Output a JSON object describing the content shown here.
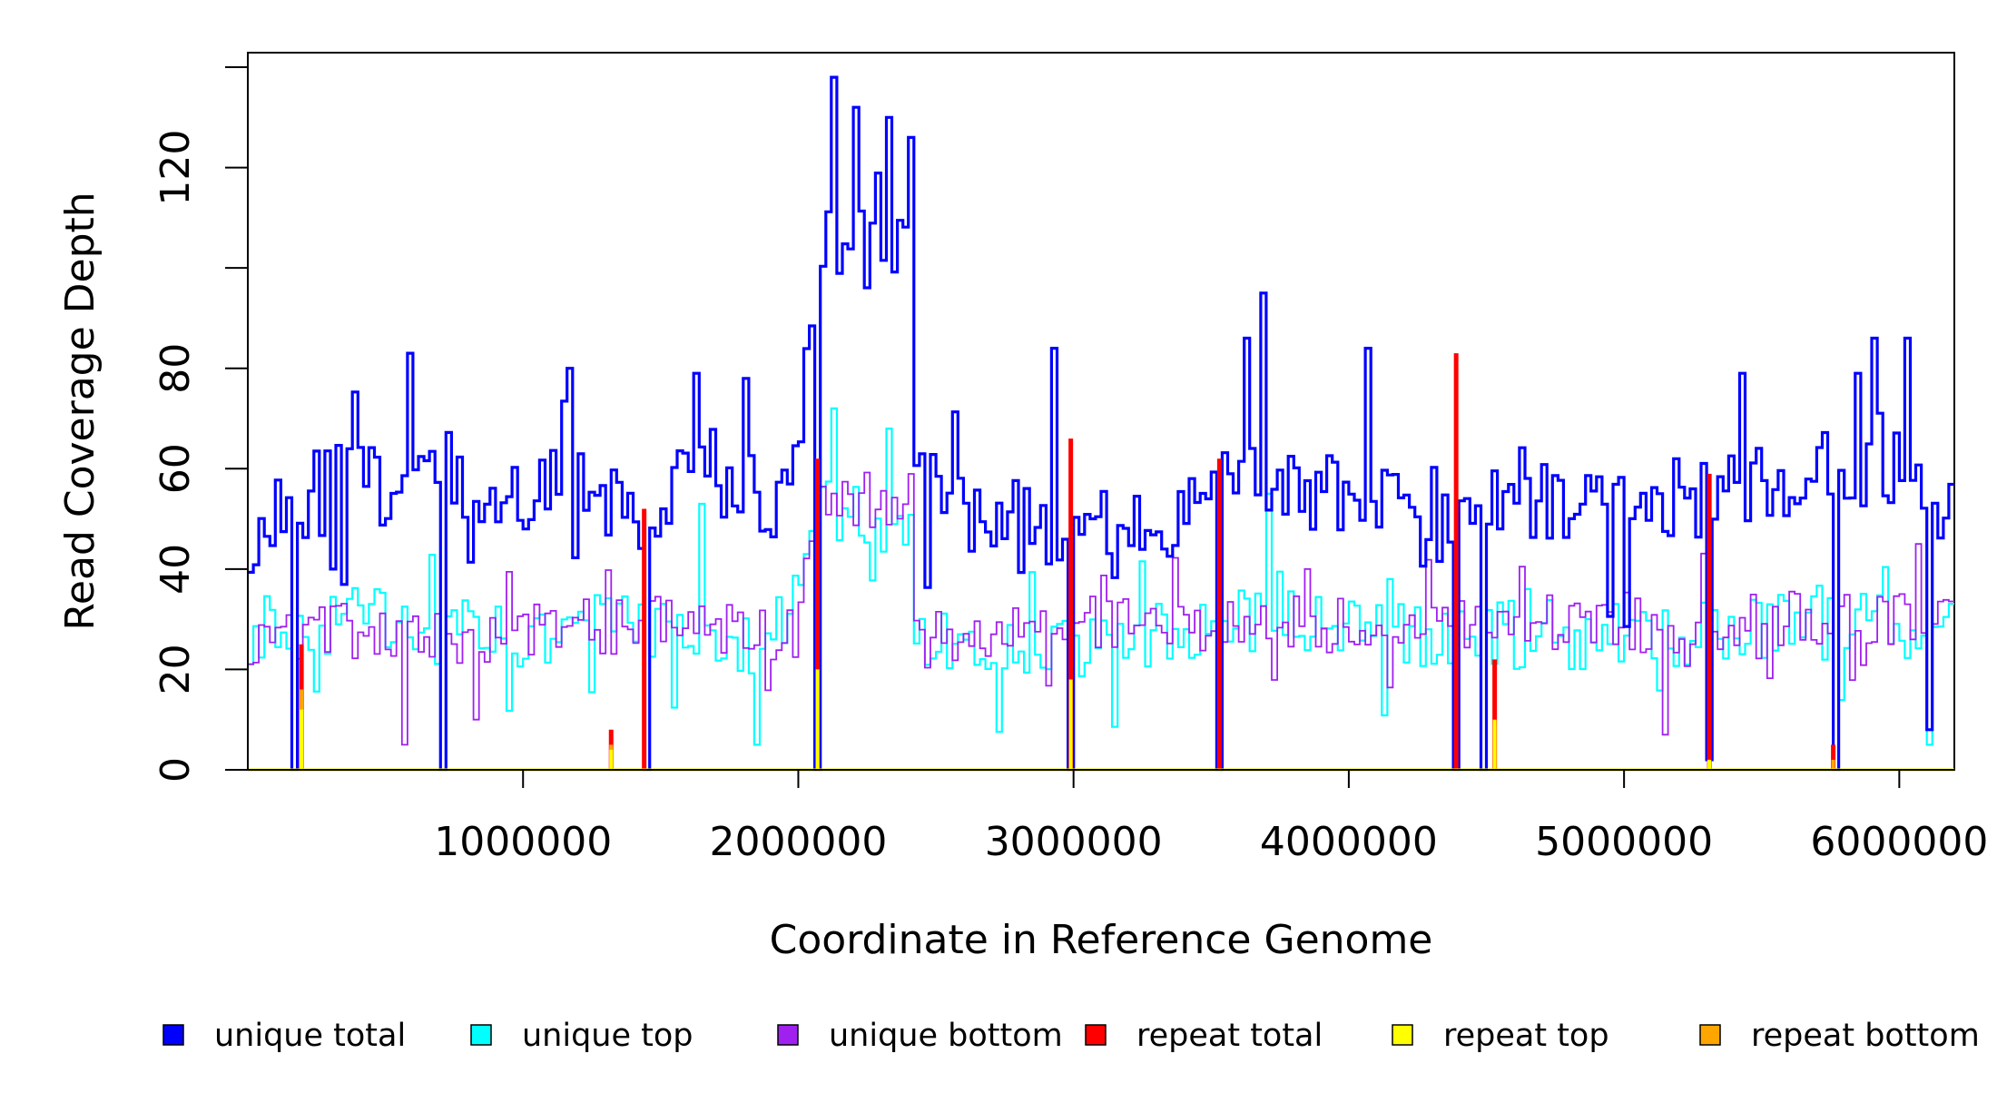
{
  "chart_data": {
    "type": "line",
    "style": "step",
    "title": "",
    "xlabel": "Coordinate in Reference Genome",
    "ylabel": "Read Coverage Depth",
    "xlim": [
      0,
      6200000
    ],
    "ylim": [
      0,
      140
    ],
    "x_ticks": [
      1000000,
      2000000,
      3000000,
      4000000,
      5000000,
      6000000
    ],
    "x_tick_labels": [
      "1000000",
      "2000000",
      "3000000",
      "4000000",
      "5000000",
      "6000000"
    ],
    "y_ticks": [
      0,
      20,
      40,
      60,
      80,
      100,
      120,
      140
    ],
    "y_tick_labels": [
      "0",
      "20",
      "40",
      "60",
      "80",
      "",
      "120",
      ""
    ],
    "legend_position": "bottom",
    "bin_width": 20000,
    "series": [
      {
        "name": "unique total",
        "color": "#0000ff",
        "profile": [
          [
            0,
            48
          ],
          [
            200000,
            55
          ],
          [
            400000,
            56
          ],
          [
            600000,
            58
          ],
          [
            700000,
            64
          ],
          [
            800000,
            52
          ],
          [
            1000000,
            55
          ],
          [
            1200000,
            57
          ],
          [
            1400000,
            52
          ],
          [
            1600000,
            56
          ],
          [
            1800000,
            54
          ],
          [
            2000000,
            56
          ],
          [
            2080000,
            108
          ],
          [
            2200000,
            104
          ],
          [
            2400000,
            103
          ],
          [
            2420000,
            56
          ],
          [
            2600000,
            51
          ],
          [
            2800000,
            53
          ],
          [
            3000000,
            47
          ],
          [
            3200000,
            47
          ],
          [
            3400000,
            51
          ],
          [
            3600000,
            58
          ],
          [
            3800000,
            57
          ],
          [
            4000000,
            55
          ],
          [
            4200000,
            54
          ],
          [
            4400000,
            50
          ],
          [
            4600000,
            55
          ],
          [
            4800000,
            54
          ],
          [
            5000000,
            51
          ],
          [
            5200000,
            51
          ],
          [
            5400000,
            55
          ],
          [
            5600000,
            57
          ],
          [
            5800000,
            60
          ],
          [
            6000000,
            62
          ],
          [
            6200000,
            52
          ]
        ],
        "noise": 9,
        "spikes": [
          [
            580000,
            83
          ],
          [
            1170000,
            80
          ],
          [
            1620000,
            79
          ],
          [
            1800000,
            78
          ],
          [
            2130000,
            138
          ],
          [
            2210000,
            132
          ],
          [
            2330000,
            130
          ],
          [
            2400000,
            126
          ],
          [
            2920000,
            84
          ],
          [
            3690000,
            95
          ],
          [
            3620000,
            86
          ],
          [
            4060000,
            84
          ],
          [
            5420000,
            79
          ],
          [
            5850000,
            79
          ],
          [
            5900000,
            86
          ],
          [
            6030000,
            86
          ]
        ],
        "drops": [
          [
            160000,
            0
          ],
          [
            310000,
            40
          ],
          [
            700000,
            0
          ],
          [
            1440000,
            0
          ],
          [
            2070000,
            0
          ],
          [
            2990000,
            0
          ],
          [
            3530000,
            0
          ],
          [
            4390000,
            0
          ],
          [
            4490000,
            0
          ],
          [
            5310000,
            2
          ],
          [
            5760000,
            0
          ],
          [
            6110000,
            8
          ]
        ]
      },
      {
        "name": "unique top",
        "color": "#00ffff",
        "profile": [
          [
            0,
            28
          ],
          [
            400000,
            30
          ],
          [
            800000,
            27
          ],
          [
            1200000,
            28
          ],
          [
            1600000,
            29
          ],
          [
            1900000,
            24
          ],
          [
            2080000,
            52
          ],
          [
            2200000,
            50
          ],
          [
            2420000,
            50
          ],
          [
            2440000,
            26
          ],
          [
            2800000,
            24
          ],
          [
            3200000,
            26
          ],
          [
            3600000,
            30
          ],
          [
            4000000,
            28
          ],
          [
            4400000,
            27
          ],
          [
            4800000,
            27
          ],
          [
            5200000,
            26
          ],
          [
            5600000,
            30
          ],
          [
            6000000,
            32
          ],
          [
            6200000,
            28
          ]
        ],
        "noise": 7,
        "spikes": [
          [
            1850000,
            5
          ],
          [
            2130000,
            72
          ],
          [
            2330000,
            68
          ],
          [
            3700000,
            55
          ],
          [
            1640000,
            53
          ]
        ],
        "drops": [
          [
            160000,
            0
          ],
          [
            700000,
            0
          ],
          [
            1440000,
            0
          ],
          [
            2070000,
            0
          ],
          [
            2990000,
            0
          ],
          [
            3530000,
            0
          ],
          [
            4390000,
            0
          ],
          [
            4490000,
            0
          ],
          [
            5310000,
            2
          ],
          [
            5760000,
            0
          ],
          [
            6110000,
            5
          ]
        ]
      },
      {
        "name": "unique bottom",
        "color": "#a020f0",
        "profile": [
          [
            0,
            27
          ],
          [
            400000,
            28
          ],
          [
            800000,
            26
          ],
          [
            1200000,
            28
          ],
          [
            1600000,
            29
          ],
          [
            2000000,
            27
          ],
          [
            2080000,
            56
          ],
          [
            2200000,
            54
          ],
          [
            2420000,
            53
          ],
          [
            2440000,
            26
          ],
          [
            2800000,
            28
          ],
          [
            3200000,
            29
          ],
          [
            3600000,
            30
          ],
          [
            4000000,
            28
          ],
          [
            4400000,
            28
          ],
          [
            4800000,
            30
          ],
          [
            5200000,
            29
          ],
          [
            5600000,
            30
          ],
          [
            6000000,
            31
          ],
          [
            6200000,
            28
          ]
        ],
        "noise": 6,
        "spikes": [
          [
            560000,
            5
          ],
          [
            830000,
            10
          ],
          [
            5150000,
            7
          ],
          [
            6060000,
            45
          ]
        ],
        "drops": [
          [
            160000,
            0
          ],
          [
            700000,
            0
          ],
          [
            1440000,
            0
          ],
          [
            2070000,
            0
          ],
          [
            2990000,
            0
          ],
          [
            3530000,
            0
          ],
          [
            4390000,
            0
          ],
          [
            4490000,
            0
          ],
          [
            5310000,
            2
          ],
          [
            5760000,
            0
          ],
          [
            6110000,
            8
          ]
        ]
      },
      {
        "name": "repeat total",
        "color": "#ff0000",
        "spikes": [
          [
            195000,
            25
          ],
          [
            1320000,
            8
          ],
          [
            1440000,
            52
          ],
          [
            2070000,
            62
          ],
          [
            2990000,
            66
          ],
          [
            3530000,
            62
          ],
          [
            4390000,
            83
          ],
          [
            4530000,
            22
          ],
          [
            5310000,
            59
          ],
          [
            5760000,
            5
          ]
        ]
      },
      {
        "name": "repeat top",
        "color": "#ffff00",
        "spikes": [
          [
            195000,
            12
          ],
          [
            1320000,
            4
          ],
          [
            2070000,
            20
          ],
          [
            2990000,
            18
          ],
          [
            4530000,
            10
          ],
          [
            5310000,
            2
          ]
        ]
      },
      {
        "name": "repeat bottom",
        "color": "#ffa500",
        "spikes": [
          [
            195000,
            16
          ],
          [
            1320000,
            5
          ],
          [
            4530000,
            9
          ],
          [
            5310000,
            2
          ],
          [
            5760000,
            2
          ]
        ]
      }
    ]
  }
}
